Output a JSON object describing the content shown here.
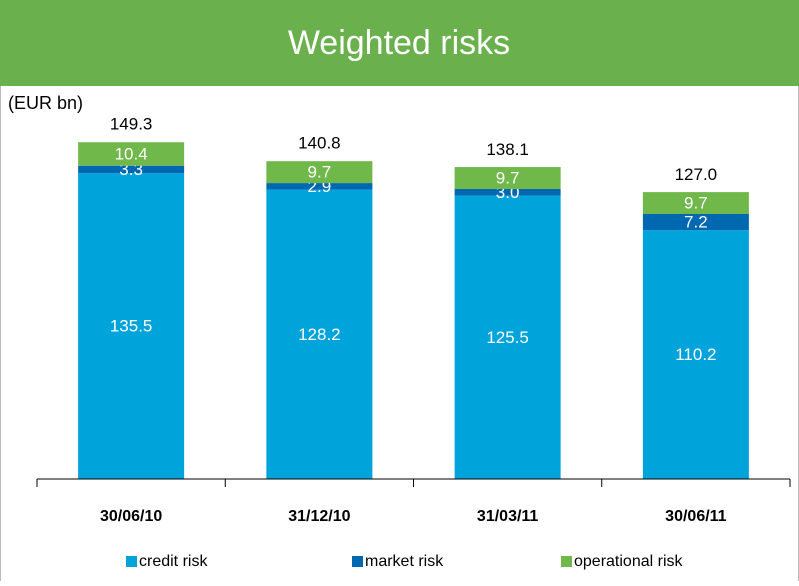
{
  "chart_data": {
    "type": "stacked_bar",
    "title": "Weighted risks",
    "unit_label": "(EUR bn)",
    "categories": [
      "30/06/10",
      "31/12/10",
      "31/03/11",
      "30/06/11"
    ],
    "series": [
      {
        "name": "credit risk",
        "color": "#00a3da",
        "values": [
          135.5,
          128.2,
          125.5,
          110.2
        ]
      },
      {
        "name": "market risk",
        "color": "#0067b1",
        "values": [
          3.3,
          2.9,
          3,
          7.2
        ],
        "value_labels": [
          "3.3",
          "2.9",
          "3.0",
          "7.2"
        ]
      },
      {
        "name": "operational risk",
        "color": "#70b84a",
        "values": [
          10.4,
          9.7,
          9.7,
          9.7
        ]
      }
    ],
    "totals": {
      "values": [
        149.3,
        140.8,
        138.1,
        127
      ],
      "value_labels": [
        "149.3",
        "140.8",
        "138.1",
        "127.0"
      ]
    }
  }
}
